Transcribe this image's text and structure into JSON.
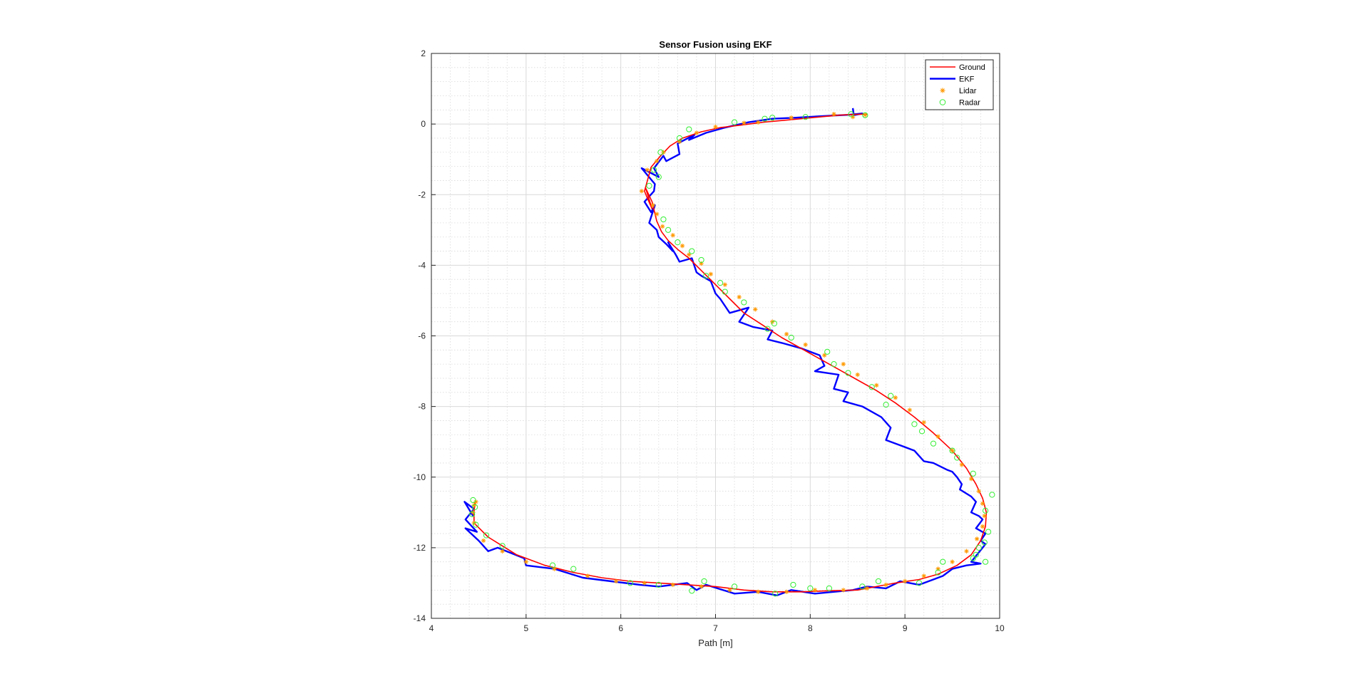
{
  "chart_data": {
    "type": "line",
    "title": "Sensor Fusion using EKF",
    "xlabel": "Path [m]",
    "ylabel": "",
    "xlim": [
      4,
      10
    ],
    "ylim": [
      -14,
      2
    ],
    "xticks": [
      4,
      5,
      6,
      7,
      8,
      9,
      10
    ],
    "yticks": [
      2,
      0,
      -2,
      -4,
      -6,
      -8,
      -10,
      -12,
      -14
    ],
    "grid": true,
    "minor_grid": true,
    "legend_position": "top-right",
    "colors": {
      "ground": "#ff0000",
      "ekf": "#0000ff",
      "lidar": "#ff9900",
      "radar": "#33ee33",
      "grid": "#d9d9d9",
      "axis": "#262626"
    },
    "legend": [
      "Ground",
      "EKF",
      "Lidar",
      "Radar"
    ],
    "series": [
      {
        "name": "Ground",
        "style": "line",
        "x": [
          8.6,
          8.45,
          8.3,
          8.1,
          7.9,
          7.7,
          7.5,
          7.3,
          7.05,
          6.85,
          6.65,
          6.52,
          6.42,
          6.32,
          6.25,
          6.28,
          6.33,
          6.26,
          6.33,
          6.38,
          6.43,
          6.5,
          6.6,
          6.72,
          6.85,
          7.0,
          7.15,
          7.3,
          7.5,
          7.7,
          7.9,
          8.1,
          8.3,
          8.5,
          8.7,
          8.9,
          9.1,
          9.3,
          9.5,
          9.65,
          9.75,
          9.82,
          9.86,
          9.85,
          9.8,
          9.7,
          9.55,
          9.35,
          9.15,
          8.9,
          8.7,
          8.5,
          8.2,
          7.9,
          7.6,
          7.3,
          7.0,
          6.7,
          6.4,
          6.1,
          5.8,
          5.5,
          5.2,
          4.9,
          4.6,
          4.45,
          4.45,
          4.46
        ],
        "y": [
          0.28,
          0.27,
          0.25,
          0.2,
          0.15,
          0.1,
          0.05,
          -0.02,
          -0.1,
          -0.22,
          -0.4,
          -0.62,
          -0.9,
          -1.22,
          -1.9,
          -2.1,
          -2.4,
          -1.8,
          -2.2,
          -2.75,
          -3.05,
          -3.3,
          -3.55,
          -3.8,
          -4.15,
          -4.55,
          -4.95,
          -5.35,
          -5.7,
          -6.05,
          -6.35,
          -6.65,
          -6.95,
          -7.25,
          -7.55,
          -7.9,
          -8.3,
          -8.75,
          -9.25,
          -9.75,
          -10.2,
          -10.6,
          -11.0,
          -11.4,
          -11.8,
          -12.2,
          -12.5,
          -12.75,
          -12.9,
          -13.0,
          -13.1,
          -13.2,
          -13.22,
          -13.25,
          -13.25,
          -13.2,
          -13.1,
          -13.05,
          -13.0,
          -12.95,
          -12.85,
          -12.7,
          -12.5,
          -12.2,
          -11.7,
          -11.3,
          -11.0,
          -10.7
        ]
      },
      {
        "name": "EKF",
        "style": "line",
        "x": [
          8.45,
          8.46,
          8.55,
          8.4,
          8.1,
          7.85,
          7.6,
          7.35,
          7.1,
          6.9,
          6.72,
          6.78,
          6.6,
          6.62,
          6.48,
          6.45,
          6.35,
          6.4,
          6.22,
          6.36,
          6.35,
          6.25,
          6.32,
          6.36,
          6.3,
          6.38,
          6.4,
          6.48,
          6.55,
          6.5,
          6.58,
          6.62,
          6.75,
          6.8,
          6.85,
          6.95,
          7.0,
          7.05,
          7.15,
          7.35,
          7.25,
          7.4,
          7.6,
          7.55,
          7.7,
          7.9,
          8.1,
          8.15,
          8.05,
          8.3,
          8.25,
          8.4,
          8.35,
          8.55,
          8.75,
          8.85,
          8.8,
          8.95,
          9.1,
          9.2,
          9.3,
          9.45,
          9.5,
          9.55,
          9.6,
          9.58,
          9.7,
          9.75,
          9.7,
          9.78,
          9.82,
          9.75,
          9.85,
          9.8,
          9.85,
          9.7,
          9.8,
          9.65,
          9.5,
          9.4,
          9.3,
          9.15,
          8.95,
          8.8,
          8.6,
          8.45,
          8.25,
          8.05,
          7.8,
          7.65,
          7.45,
          7.2,
          6.9,
          6.8,
          6.7,
          6.4,
          6.2,
          5.9,
          5.6,
          5.3,
          5.0,
          4.98,
          4.7,
          4.6,
          4.5,
          4.36,
          4.48,
          4.36,
          4.45,
          4.35,
          4.44
        ],
        "y": [
          0.45,
          0.25,
          0.3,
          0.26,
          0.22,
          0.18,
          0.15,
          0.05,
          -0.1,
          -0.25,
          -0.45,
          -0.3,
          -0.55,
          -0.85,
          -1.05,
          -0.9,
          -1.25,
          -1.5,
          -1.25,
          -1.7,
          -1.9,
          -2.2,
          -2.5,
          -2.3,
          -2.8,
          -3.0,
          -3.2,
          -3.4,
          -3.6,
          -3.35,
          -3.7,
          -3.9,
          -3.8,
          -4.2,
          -4.3,
          -4.45,
          -4.8,
          -4.95,
          -5.35,
          -5.2,
          -5.6,
          -5.75,
          -5.85,
          -6.1,
          -6.2,
          -6.35,
          -6.55,
          -6.85,
          -7.0,
          -7.1,
          -7.5,
          -7.6,
          -7.85,
          -8.0,
          -8.3,
          -8.6,
          -8.95,
          -9.1,
          -9.25,
          -9.55,
          -9.6,
          -9.8,
          -9.85,
          -10.0,
          -10.2,
          -10.35,
          -10.55,
          -10.7,
          -11.0,
          -11.1,
          -11.2,
          -11.45,
          -11.6,
          -11.8,
          -11.9,
          -12.4,
          -12.45,
          -12.5,
          -12.6,
          -12.8,
          -12.9,
          -13.05,
          -12.95,
          -13.15,
          -13.1,
          -13.2,
          -13.25,
          -13.3,
          -13.2,
          -13.35,
          -13.25,
          -13.3,
          -13.05,
          -13.2,
          -13.0,
          -13.1,
          -13.05,
          -12.95,
          -12.85,
          -12.6,
          -12.5,
          -12.3,
          -12.0,
          -12.1,
          -11.8,
          -11.45,
          -11.55,
          -11.2,
          -10.9,
          -10.7,
          -11.1
        ]
      },
      {
        "name": "Lidar",
        "style": "marker-star",
        "x": [
          8.45,
          8.58,
          8.25,
          7.8,
          7.45,
          7.3,
          7.0,
          6.8,
          6.62,
          6.45,
          6.38,
          6.28,
          6.22,
          6.34,
          6.38,
          6.44,
          6.55,
          6.65,
          6.72,
          6.85,
          6.95,
          7.1,
          7.25,
          7.42,
          7.6,
          7.75,
          7.95,
          8.15,
          8.35,
          8.5,
          8.7,
          8.9,
          9.05,
          9.2,
          9.35,
          9.5,
          9.6,
          9.7,
          9.78,
          9.82,
          9.84,
          9.82,
          9.76,
          9.65,
          9.5,
          9.35,
          9.2,
          9.0,
          8.8,
          8.6,
          8.35,
          8.05,
          7.75,
          7.45,
          7.15,
          6.85,
          6.55,
          6.25,
          5.95,
          5.65,
          5.3,
          5.0,
          4.75,
          4.55,
          4.45,
          4.44,
          4.45,
          4.47
        ],
        "y": [
          0.2,
          0.26,
          0.28,
          0.18,
          0.05,
          0.03,
          -0.08,
          -0.25,
          -0.5,
          -0.8,
          -1.05,
          -1.3,
          -1.9,
          -2.3,
          -2.55,
          -2.9,
          -3.15,
          -3.45,
          -3.7,
          -3.95,
          -4.25,
          -4.55,
          -4.9,
          -5.25,
          -5.6,
          -5.95,
          -6.25,
          -6.55,
          -6.8,
          -7.1,
          -7.4,
          -7.75,
          -8.1,
          -8.45,
          -8.85,
          -9.25,
          -9.65,
          -10.05,
          -10.4,
          -10.75,
          -11.1,
          -11.4,
          -11.75,
          -12.1,
          -12.4,
          -12.6,
          -12.8,
          -12.95,
          -13.05,
          -13.15,
          -13.2,
          -13.2,
          -13.25,
          -13.25,
          -13.2,
          -13.1,
          -13.05,
          -13.0,
          -12.95,
          -12.8,
          -12.6,
          -12.4,
          -12.1,
          -11.8,
          -11.3,
          -11.0,
          -10.8,
          -10.7
        ]
      },
      {
        "name": "Radar",
        "style": "marker-circle",
        "x": [
          8.58,
          8.43,
          7.95,
          7.6,
          7.52,
          7.2,
          6.72,
          6.62,
          6.42,
          6.35,
          6.3,
          6.4,
          6.45,
          6.5,
          6.6,
          6.75,
          6.85,
          6.9,
          7.05,
          7.3,
          7.1,
          7.62,
          7.55,
          7.8,
          8.18,
          8.25,
          8.4,
          8.65,
          8.85,
          8.8,
          9.1,
          9.18,
          9.3,
          9.5,
          9.55,
          9.72,
          9.92,
          9.85,
          9.88,
          9.84,
          9.78,
          9.72,
          9.85,
          9.75,
          9.4,
          9.35,
          9.15,
          8.72,
          8.55,
          8.2,
          8.0,
          7.82,
          7.63,
          7.2,
          6.88,
          6.75,
          6.4,
          6.1,
          5.5,
          5.28,
          4.75,
          4.58,
          4.47,
          4.43,
          4.46,
          4.44
        ],
        "y": [
          0.25,
          0.28,
          0.2,
          0.18,
          0.15,
          0.05,
          -0.15,
          -0.4,
          -0.8,
          -1.3,
          -1.75,
          -1.5,
          -2.7,
          -3.0,
          -3.35,
          -3.6,
          -3.85,
          -4.3,
          -4.5,
          -5.05,
          -4.75,
          -5.65,
          -5.8,
          -6.05,
          -6.45,
          -6.8,
          -7.05,
          -7.45,
          -7.7,
          -7.95,
          -8.5,
          -8.7,
          -9.05,
          -9.25,
          -9.45,
          -9.9,
          -10.5,
          -10.95,
          -11.55,
          -11.85,
          -12.0,
          -12.3,
          -12.4,
          -12.2,
          -12.4,
          -12.7,
          -13.0,
          -12.95,
          -13.1,
          -13.15,
          -13.15,
          -13.05,
          -13.3,
          -13.1,
          -12.95,
          -13.22,
          -13.05,
          -13.0,
          -12.6,
          -12.5,
          -11.95,
          -11.65,
          -11.35,
          -11.05,
          -10.85,
          -10.65
        ]
      }
    ]
  }
}
